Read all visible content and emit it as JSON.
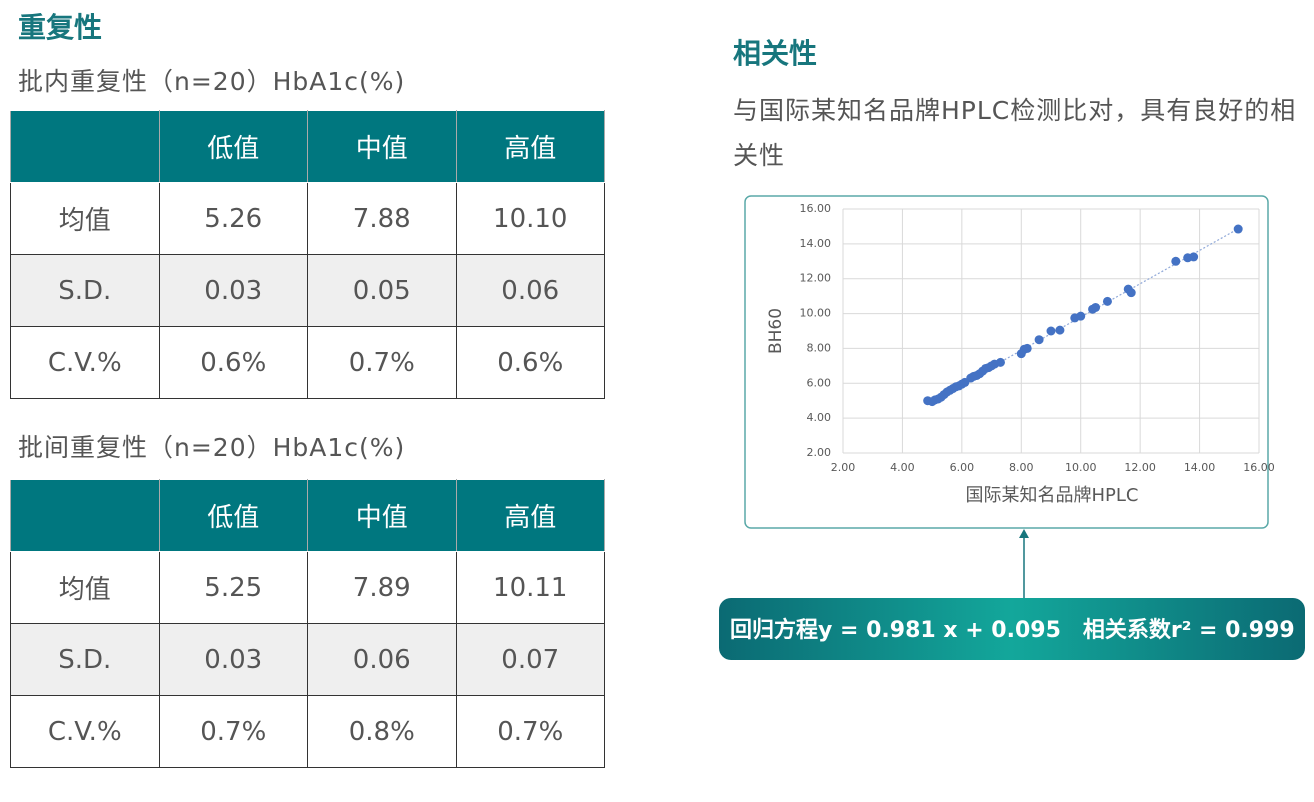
{
  "left": {
    "title": "重复性",
    "tables": [
      {
        "caption": "批内重复性（n=20）HbA1c(%)",
        "header": [
          "低值",
          "中值",
          "高值"
        ],
        "rows": [
          [
            "均值",
            "5.26",
            "7.88",
            "10.10"
          ],
          [
            "S.D.",
            "0.03",
            "0.05",
            "0.06"
          ],
          [
            "C.V.%",
            "0.6%",
            "0.7%",
            "0.6%"
          ]
        ]
      },
      {
        "caption": "批间重复性（n=20）HbA1c(%)",
        "header": [
          "低值",
          "中值",
          "高值"
        ],
        "rows": [
          [
            "均值",
            "5.25",
            "7.89",
            "10.11"
          ],
          [
            "S.D.",
            "0.03",
            "0.06",
            "0.07"
          ],
          [
            "C.V.%",
            "0.7%",
            "0.8%",
            "0.7%"
          ]
        ]
      }
    ]
  },
  "right": {
    "title": "相关性",
    "description": "与国际某知名品牌HPLC检测比对，具有良好的相关性",
    "formula": "回归方程y = 0.981 x + 0.095　相关系数r² = 0.999"
  },
  "chart_data": {
    "type": "scatter",
    "x_label": "国际某知名品牌HPLC",
    "y_label": "BH60",
    "color": "#4472c4",
    "grid": true,
    "xlim": [
      2,
      16
    ],
    "ylim": [
      2,
      16
    ],
    "xticks": [
      {
        "value": 2,
        "label": "2.00"
      },
      {
        "value": 4,
        "label": "4.00"
      },
      {
        "value": 6,
        "label": "6.00"
      },
      {
        "value": 8,
        "label": "8.00"
      },
      {
        "value": 10,
        "label": "10.00"
      },
      {
        "value": 12,
        "label": "12.00"
      },
      {
        "value": 14,
        "label": "14.00"
      },
      {
        "value": 16,
        "label": "16.00"
      }
    ],
    "yticks": [
      {
        "value": 2,
        "label": "2.00"
      },
      {
        "value": 4,
        "label": "4.00"
      },
      {
        "value": 6,
        "label": "6.00"
      },
      {
        "value": 8,
        "label": "8.00"
      },
      {
        "value": 10,
        "label": "10.00"
      },
      {
        "value": 12,
        "label": "12.00"
      },
      {
        "value": 14,
        "label": "14.00"
      },
      {
        "value": 16,
        "label": "16.00"
      }
    ],
    "x": [
      4.85,
      5.0,
      5.1,
      5.2,
      5.3,
      5.4,
      5.5,
      5.6,
      5.7,
      5.8,
      5.9,
      6.0,
      6.1,
      6.3,
      6.4,
      6.5,
      6.6,
      6.7,
      6.8,
      6.9,
      7.0,
      7.1,
      7.3,
      8.0,
      8.1,
      8.2,
      8.6,
      9.0,
      9.3,
      9.8,
      10.0,
      10.4,
      10.5,
      10.9,
      11.6,
      11.7,
      13.2,
      13.6,
      13.8,
      15.3
    ],
    "y": [
      5.0,
      4.95,
      5.05,
      5.1,
      5.2,
      5.35,
      5.5,
      5.6,
      5.7,
      5.8,
      5.85,
      5.95,
      6.05,
      6.3,
      6.4,
      6.45,
      6.55,
      6.7,
      6.85,
      6.9,
      7.0,
      7.1,
      7.2,
      7.7,
      7.95,
      8.0,
      8.5,
      9.0,
      9.05,
      9.75,
      9.85,
      10.25,
      10.35,
      10.7,
      11.4,
      11.2,
      13.0,
      13.2,
      13.25,
      14.85
    ]
  }
}
